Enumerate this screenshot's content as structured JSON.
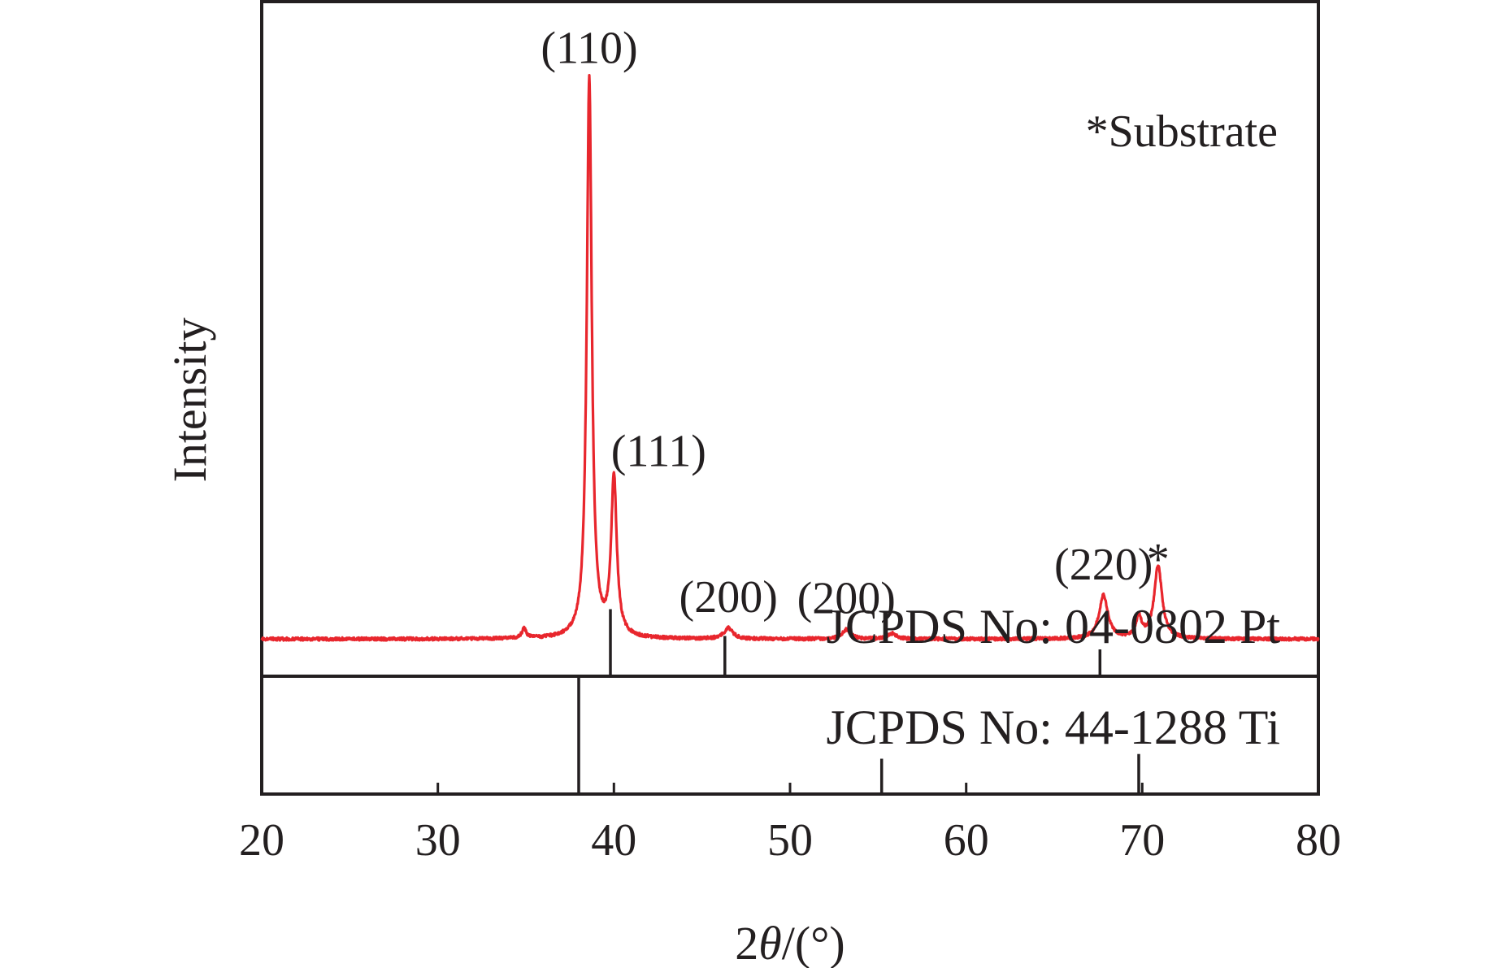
{
  "chart_data": {
    "type": "line",
    "title": "",
    "xlabel": "2θ/(°)",
    "xlabel_prefix": "2",
    "xlabel_symbol": "θ",
    "xlabel_suffix": "/(°)",
    "ylabel": "Intensity",
    "xlim": [
      20,
      80
    ],
    "ylim": [
      0,
      1
    ],
    "x_ticks": [
      20,
      30,
      40,
      50,
      60,
      70,
      80
    ],
    "x_tick_labels": [
      "20",
      "30",
      "40",
      "50",
      "60",
      "70",
      "80"
    ],
    "y_ticks_shown": false,
    "grid": false,
    "series_color": "#e8262d",
    "series": [
      {
        "baseline": 0.055,
        "peaks": [
          {
            "x": 34.9,
            "height": 0.014,
            "width": 0.15
          },
          {
            "x": 38.6,
            "height": 0.83,
            "width": 0.17,
            "label": "(110)"
          },
          {
            "x": 40.0,
            "height": 0.235,
            "width": 0.19,
            "label": "(111)"
          },
          {
            "x": 46.5,
            "height": 0.016,
            "width": 0.3,
            "label": "(200)"
          },
          {
            "x": 53.2,
            "height": 0.014,
            "width": 0.28,
            "label": "(200)"
          },
          {
            "x": 55.8,
            "height": 0.008,
            "width": 0.3
          },
          {
            "x": 67.8,
            "height": 0.064,
            "width": 0.3,
            "label": "(220)"
          },
          {
            "x": 69.8,
            "height": 0.03,
            "width": 0.2
          },
          {
            "x": 70.9,
            "height": 0.108,
            "width": 0.27,
            "label": "*"
          }
        ]
      }
    ],
    "legend_note": "*Substrate",
    "reference_patterns": [
      {
        "name": "JCPDS No: 04-0802 Pt",
        "lines": [
          {
            "x": 39.8,
            "rel": 0.55
          },
          {
            "x": 46.3,
            "rel": 0.33
          },
          {
            "x": 67.6,
            "rel": 0.22
          }
        ]
      },
      {
        "name": "JCPDS No: 44-1288 Ti",
        "lines": [
          {
            "x": 38.0,
            "rel": 1.0
          },
          {
            "x": 55.2,
            "rel": 0.3
          },
          {
            "x": 69.8,
            "rel": 0.34
          }
        ]
      }
    ]
  }
}
